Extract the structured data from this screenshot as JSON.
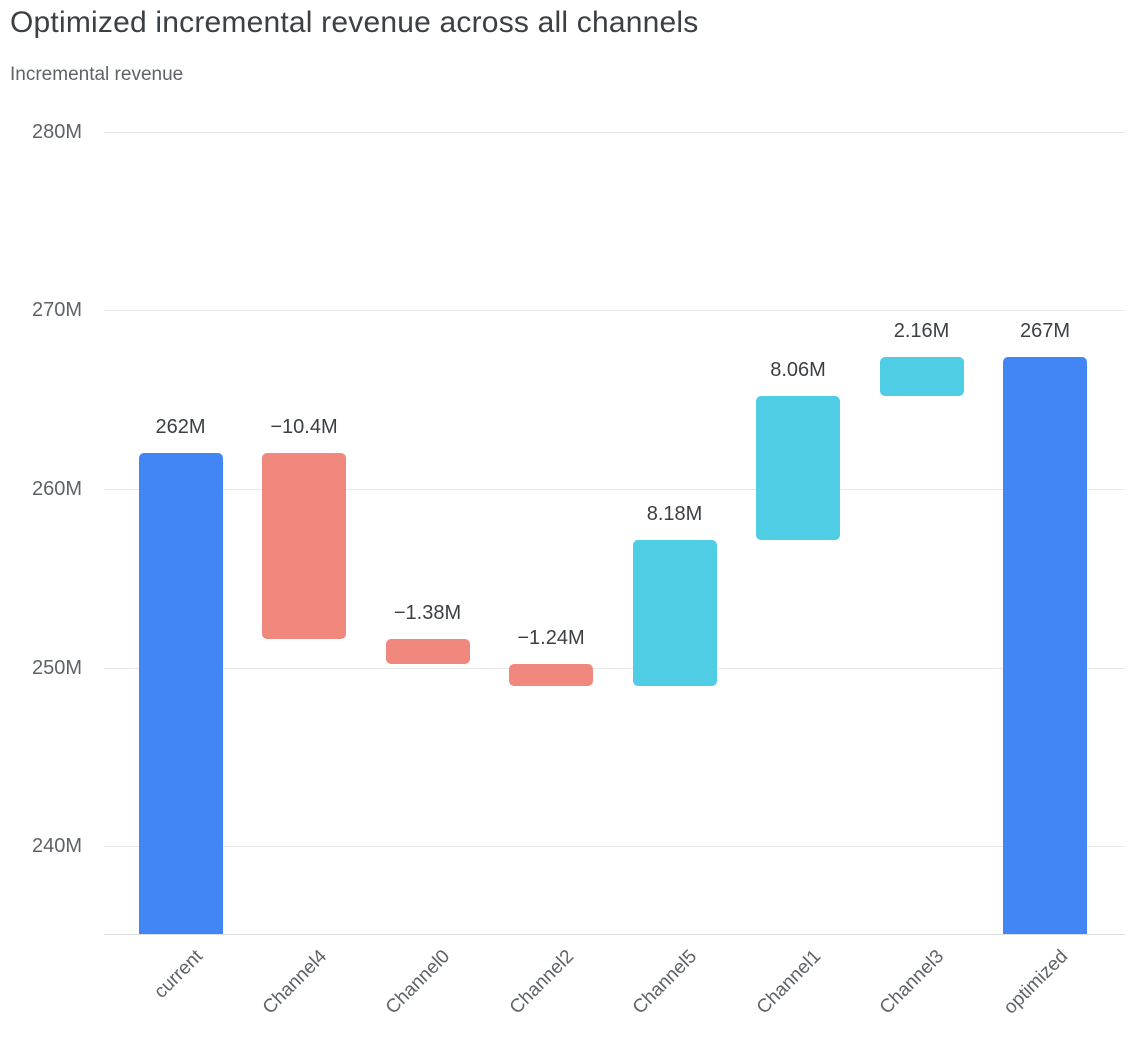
{
  "chart_data": {
    "type": "waterfall",
    "title": "Optimized incremental revenue across all channels",
    "subtitle": "Incremental revenue",
    "ylabel": "Incremental revenue",
    "ylim": [
      235.1,
      281.6
    ],
    "grid": "on",
    "legend": "none",
    "unit": "M",
    "categories": [
      "current",
      "Channel4",
      "Channel0",
      "Channel2",
      "Channel5",
      "Channel1",
      "Channel3",
      "optimized"
    ],
    "yticks": [
      {
        "value": 240,
        "label": "240M"
      },
      {
        "value": 250,
        "label": "250M"
      },
      {
        "value": 260,
        "label": "260M"
      },
      {
        "value": 270,
        "label": "270M"
      },
      {
        "value": 280,
        "label": "280M"
      }
    ],
    "bars": [
      {
        "category": "current",
        "kind": "total",
        "value": 262.0,
        "start": 235.1,
        "end": 262.0,
        "display": "262M"
      },
      {
        "category": "Channel4",
        "kind": "decrease",
        "value": -10.4,
        "start": 262.0,
        "end": 251.6,
        "display": "−10.4M"
      },
      {
        "category": "Channel0",
        "kind": "decrease",
        "value": -1.38,
        "start": 251.6,
        "end": 250.22,
        "display": "−1.38M"
      },
      {
        "category": "Channel2",
        "kind": "decrease",
        "value": -1.24,
        "start": 250.22,
        "end": 248.98,
        "display": "−1.24M"
      },
      {
        "category": "Channel5",
        "kind": "increase",
        "value": 8.18,
        "start": 248.98,
        "end": 257.16,
        "display": "8.18M"
      },
      {
        "category": "Channel1",
        "kind": "increase",
        "value": 8.06,
        "start": 257.16,
        "end": 265.22,
        "display": "8.06M"
      },
      {
        "category": "Channel3",
        "kind": "increase",
        "value": 2.16,
        "start": 265.22,
        "end": 267.38,
        "display": "2.16M"
      },
      {
        "category": "optimized",
        "kind": "total",
        "value": 267.38,
        "start": 235.1,
        "end": 267.38,
        "display": "267M"
      }
    ],
    "colors": {
      "total": "#4285F4",
      "decrease": "#F1887E",
      "increase": "#4ECDE4",
      "gridline": "#e7e7e7",
      "axis_line": "#dadce0",
      "value_label_text": "#3c4043",
      "tick_text": "#5f6368",
      "title_text": "#3c4043",
      "background": "#ffffff"
    }
  }
}
